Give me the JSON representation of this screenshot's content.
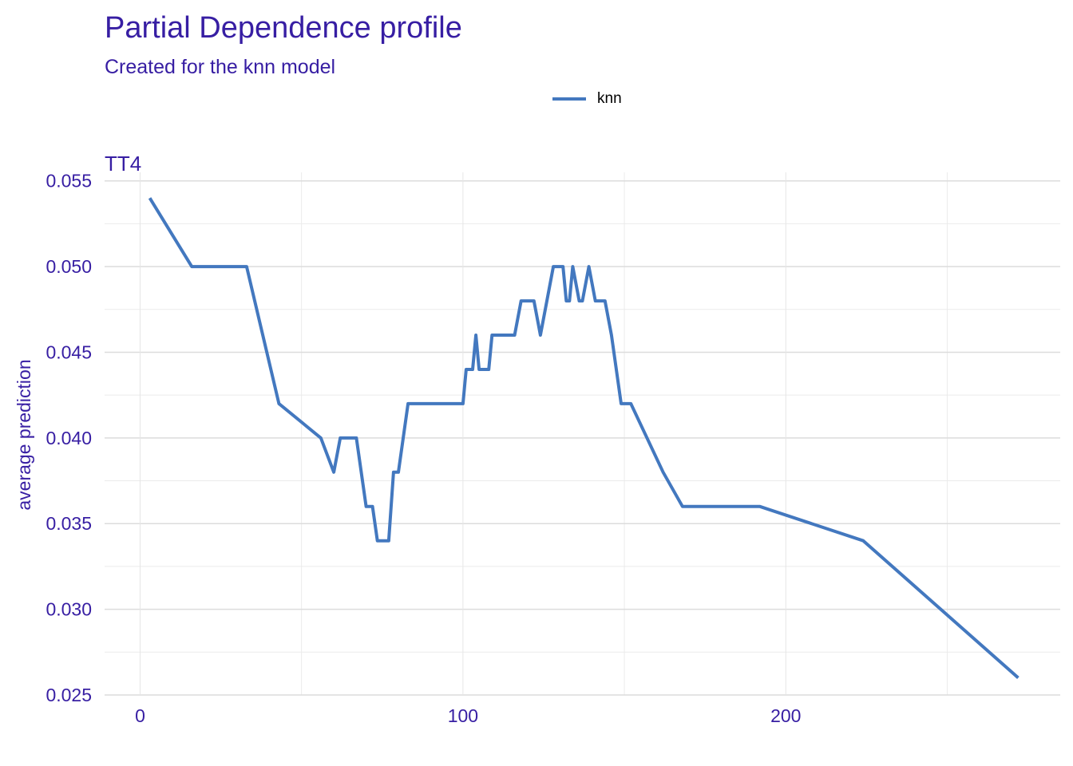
{
  "title": "Partial Dependence profile",
  "subtitle": "Created for the knn model",
  "legend": {
    "label": "knn",
    "color": "#4378bf"
  },
  "panel": {
    "strip_label": "TT4"
  },
  "chart_data": {
    "type": "line",
    "title": "Partial Dependence profile",
    "subtitle": "Created for the knn model",
    "facet": "TT4",
    "xlabel": "",
    "ylabel": "average prediction",
    "xlim": [
      -11,
      285
    ],
    "ylim": [
      0.025,
      0.0555
    ],
    "x_ticks": [
      0,
      100,
      200
    ],
    "x_tick_labels": [
      "0",
      "100",
      "200"
    ],
    "y_ticks": [
      0.025,
      0.03,
      0.035,
      0.04,
      0.045,
      0.05,
      0.055
    ],
    "y_tick_labels": [
      "0.025",
      "0.030",
      "0.035",
      "0.040",
      "0.045",
      "0.050",
      "0.055"
    ],
    "grid": true,
    "legend_position": "top",
    "series": [
      {
        "name": "knn",
        "color": "#4378bf",
        "x": [
          3,
          16,
          33,
          43,
          56,
          60,
          62,
          67,
          70,
          72,
          73.5,
          77,
          78.5,
          79,
          80,
          83,
          100,
          101,
          103,
          104,
          105,
          108,
          109,
          116,
          118,
          122,
          124,
          126,
          128,
          131,
          132,
          133,
          134,
          136,
          137,
          139,
          141,
          142,
          144,
          146,
          149,
          150,
          152,
          162,
          168,
          192,
          224,
          272
        ],
        "y": [
          0.054,
          0.05,
          0.05,
          0.042,
          0.04,
          0.038,
          0.04,
          0.04,
          0.036,
          0.036,
          0.034,
          0.034,
          0.038,
          0.038,
          0.038,
          0.042,
          0.042,
          0.044,
          0.044,
          0.046,
          0.044,
          0.044,
          0.046,
          0.046,
          0.048,
          0.048,
          0.046,
          0.048,
          0.05,
          0.05,
          0.048,
          0.048,
          0.05,
          0.048,
          0.048,
          0.05,
          0.048,
          0.048,
          0.048,
          0.046,
          0.042,
          0.042,
          0.042,
          0.038,
          0.036,
          0.036,
          0.034,
          0.026
        ]
      }
    ]
  }
}
